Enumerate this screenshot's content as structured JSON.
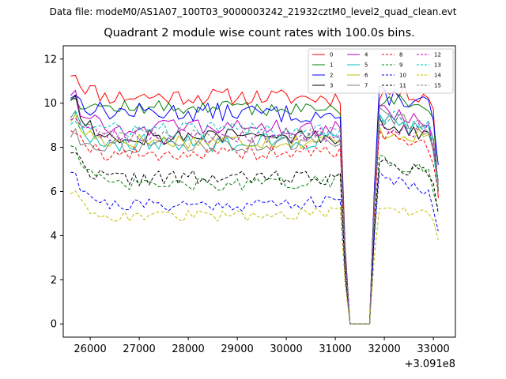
{
  "chart_data": {
    "type": "line",
    "suptitle": "Data file: modeM0/AS1A07_100T03_9000003242_21932cztM0_level2_quad_clean.evt",
    "title": "Quadrant 2 module wise count rates with 100.0s bins.",
    "xlabel": "",
    "ylabel": "",
    "x_offset_label": "+3.091e8",
    "xlim": [
      25450,
      33450
    ],
    "ylim": [
      -0.6,
      12.6
    ],
    "xticks": [
      26000,
      27000,
      28000,
      29000,
      30000,
      31000,
      32000,
      33000
    ],
    "yticks": [
      0,
      2,
      4,
      6,
      8,
      10,
      12
    ],
    "x_start": 25600,
    "x_step": 100,
    "gap_start": 31200,
    "gap_end": 31700,
    "grid": false,
    "legend_position": "top-right",
    "series": [
      {
        "name": "0",
        "color": "#ff0000",
        "style": "solid",
        "level": 10.3,
        "start": 11.4,
        "pre_end": 10.1,
        "post": 10.5,
        "end": 5.7,
        "amp": 0.32,
        "seed": 11
      },
      {
        "name": "1",
        "color": "#008000",
        "style": "solid",
        "level": 9.8,
        "start": 10.3,
        "pre_end": 9.5,
        "post": 10.2,
        "end": 6.0,
        "amp": 0.28,
        "seed": 12
      },
      {
        "name": "2",
        "color": "#0000ff",
        "style": "solid",
        "level": 9.6,
        "start": 10.4,
        "pre_end": 9.2,
        "post": 10.4,
        "end": 7.2,
        "amp": 0.35,
        "seed": 13
      },
      {
        "name": "3",
        "color": "#000000",
        "style": "solid",
        "level": 8.5,
        "start": 10.3,
        "pre_end": 8.4,
        "post": 9.0,
        "end": 6.1,
        "amp": 0.35,
        "seed": 14
      },
      {
        "name": "4",
        "color": "#bf00bf",
        "style": "solid",
        "level": 8.9,
        "start": 10.5,
        "pre_end": 8.8,
        "post": 9.6,
        "end": 6.3,
        "amp": 0.3,
        "seed": 15
      },
      {
        "name": "5",
        "color": "#00bfbf",
        "style": "solid",
        "level": 8.2,
        "start": 9.5,
        "pre_end": 8.5,
        "post": 9.2,
        "end": 6.0,
        "amp": 0.35,
        "seed": 16
      },
      {
        "name": "6",
        "color": "#bfbf00",
        "style": "solid",
        "level": 8.3,
        "start": 9.3,
        "pre_end": 8.2,
        "post": 8.7,
        "end": 6.2,
        "amp": 0.3,
        "seed": 17
      },
      {
        "name": "7",
        "color": "#808080",
        "style": "solid",
        "level": 8.1,
        "start": 8.6,
        "pre_end": 8.3,
        "post": 9.6,
        "end": 6.4,
        "amp": 0.3,
        "seed": 18
      },
      {
        "name": "8",
        "color": "#ff0000",
        "style": "dashed",
        "level": 7.7,
        "start": 8.9,
        "pre_end": 8.0,
        "post": 8.6,
        "end": 6.0,
        "amp": 0.28,
        "seed": 19
      },
      {
        "name": "9",
        "color": "#008000",
        "style": "dashed",
        "level": 6.3,
        "start": 8.2,
        "pre_end": 6.7,
        "post": 7.5,
        "end": 5.2,
        "amp": 0.25,
        "seed": 20
      },
      {
        "name": "10",
        "color": "#0000ff",
        "style": "dashed",
        "level": 5.4,
        "start": 7.0,
        "pre_end": 5.7,
        "post": 6.8,
        "end": 4.2,
        "amp": 0.25,
        "seed": 21
      },
      {
        "name": "11",
        "color": "#000000",
        "style": "dashed",
        "level": 6.6,
        "start": 7.9,
        "pre_end": 6.8,
        "post": 7.2,
        "end": 5.0,
        "amp": 0.3,
        "seed": 22
      },
      {
        "name": "12",
        "color": "#bf00bf",
        "style": "dashed",
        "level": 8.5,
        "start": 9.4,
        "pre_end": 8.7,
        "post": 9.0,
        "end": 6.5,
        "amp": 0.3,
        "seed": 23
      },
      {
        "name": "13",
        "color": "#00bfbf",
        "style": "dashed",
        "level": 8.8,
        "start": 9.2,
        "pre_end": 8.8,
        "post": 9.4,
        "end": 6.2,
        "amp": 0.3,
        "seed": 24
      },
      {
        "name": "14",
        "color": "#bfbf00",
        "style": "dashed",
        "level": 4.9,
        "start": 6.0,
        "pre_end": 5.2,
        "post": 5.2,
        "end": 3.8,
        "amp": 0.22,
        "seed": 25
      },
      {
        "name": "15",
        "color": "#808080",
        "style": "dashed",
        "level": 8.6,
        "start": 9.5,
        "pre_end": 8.9,
        "post": 9.3,
        "end": 6.4,
        "amp": 0.3,
        "seed": 26
      }
    ]
  }
}
